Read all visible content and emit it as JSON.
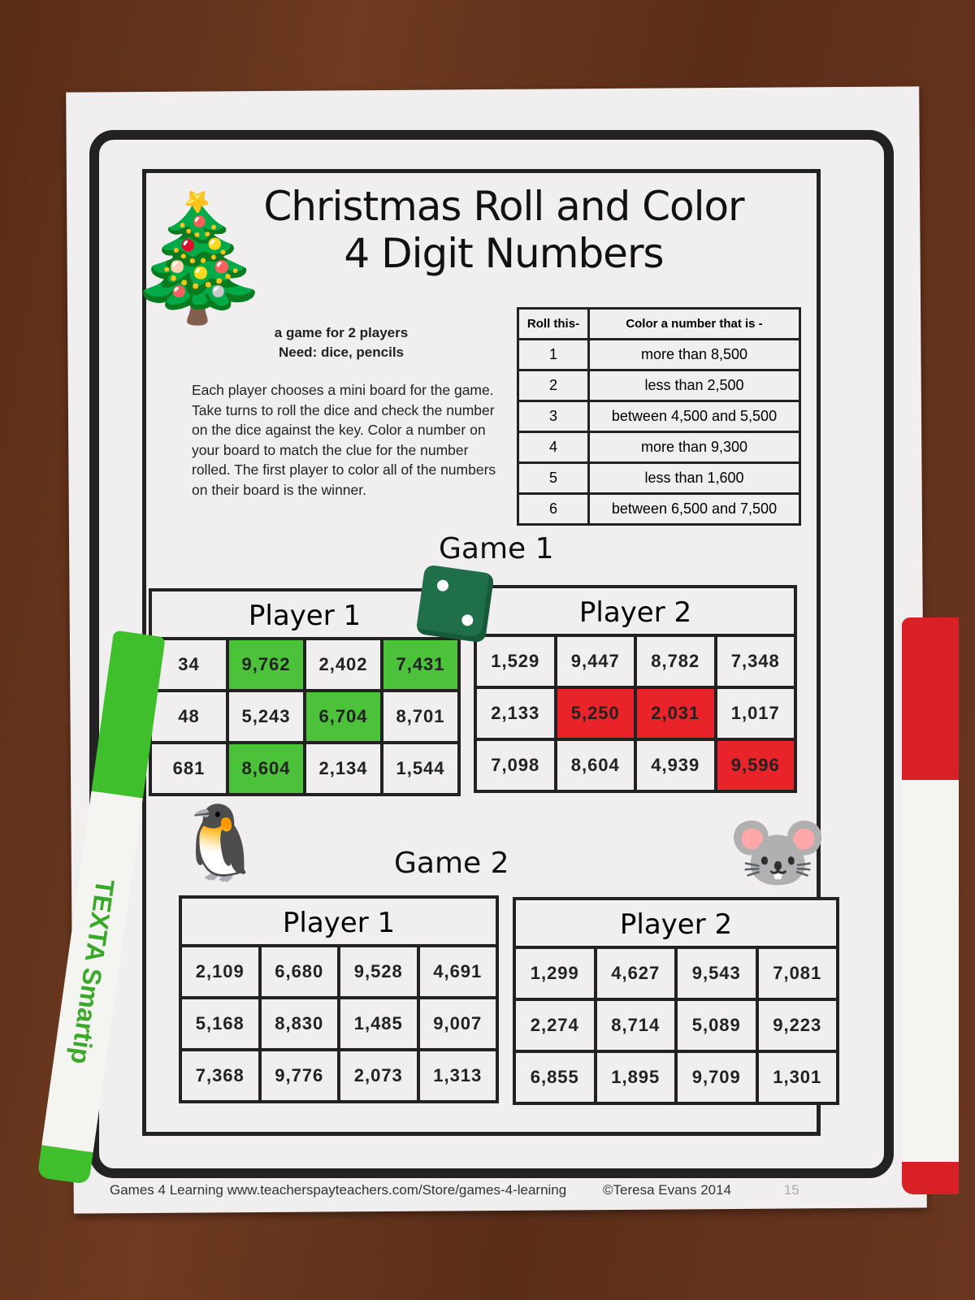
{
  "title": {
    "line1": "Christmas Roll and Color",
    "line2": "4 Digit Numbers"
  },
  "intro": {
    "line1": "a game for 2 players",
    "line2": "Need: dice, pencils",
    "instructions": "Each player chooses a mini board for the game. Take turns to roll the dice and check the number on the dice against the key. Color a number on your board to match the clue for the number rolled. The first player to color all of the numbers on their board is the winner."
  },
  "key": {
    "headers": [
      "Roll this-",
      "Color a number that is -"
    ],
    "rows": [
      [
        "1",
        "more than 8,500"
      ],
      [
        "2",
        "less than 2,500"
      ],
      [
        "3",
        "between 4,500 and 5,500"
      ],
      [
        "4",
        "more than 9,300"
      ],
      [
        "5",
        "less than 1,600"
      ],
      [
        "6",
        "between 6,500 and 7,500"
      ]
    ]
  },
  "games": [
    {
      "title": "Game 1",
      "boards": [
        {
          "player": "Player 1",
          "cells": [
            "34",
            "9,762",
            "2,402",
            "7,431",
            "48",
            "5,243",
            "6,704",
            "8,701",
            "681",
            "8,604",
            "2,134",
            "1,544"
          ],
          "colored": [
            1,
            3,
            6,
            9
          ],
          "color": "#4cc23a"
        },
        {
          "player": "Player 2",
          "cells": [
            "1,529",
            "9,447",
            "8,782",
            "7,348",
            "2,133",
            "5,250",
            "2,031",
            "1,017",
            "7,098",
            "8,604",
            "4,939",
            "9,596"
          ],
          "colored": [
            5,
            6,
            11
          ],
          "color": "#e8242a"
        }
      ]
    },
    {
      "title": "Game 2",
      "boards": [
        {
          "player": "Player 1",
          "cells": [
            "2,109",
            "6,680",
            "9,528",
            "4,691",
            "5,168",
            "8,830",
            "1,485",
            "9,007",
            "7,368",
            "9,776",
            "2,073",
            "1,313"
          ],
          "colored": []
        },
        {
          "player": "Player 2",
          "cells": [
            "1,299",
            "4,627",
            "9,543",
            "7,081",
            "2,274",
            "8,714",
            "5,089",
            "9,223",
            "6,855",
            "1,895",
            "9,709",
            "1,301"
          ],
          "colored": []
        }
      ]
    }
  ],
  "die_value": 2,
  "marker_brand": "TEXTA Smartip",
  "footer": {
    "left": "Games 4 Learning www.teacherspayteachers.com/Store/games-4-learning",
    "copyright": "©Teresa Evans 2014",
    "page": "15"
  }
}
